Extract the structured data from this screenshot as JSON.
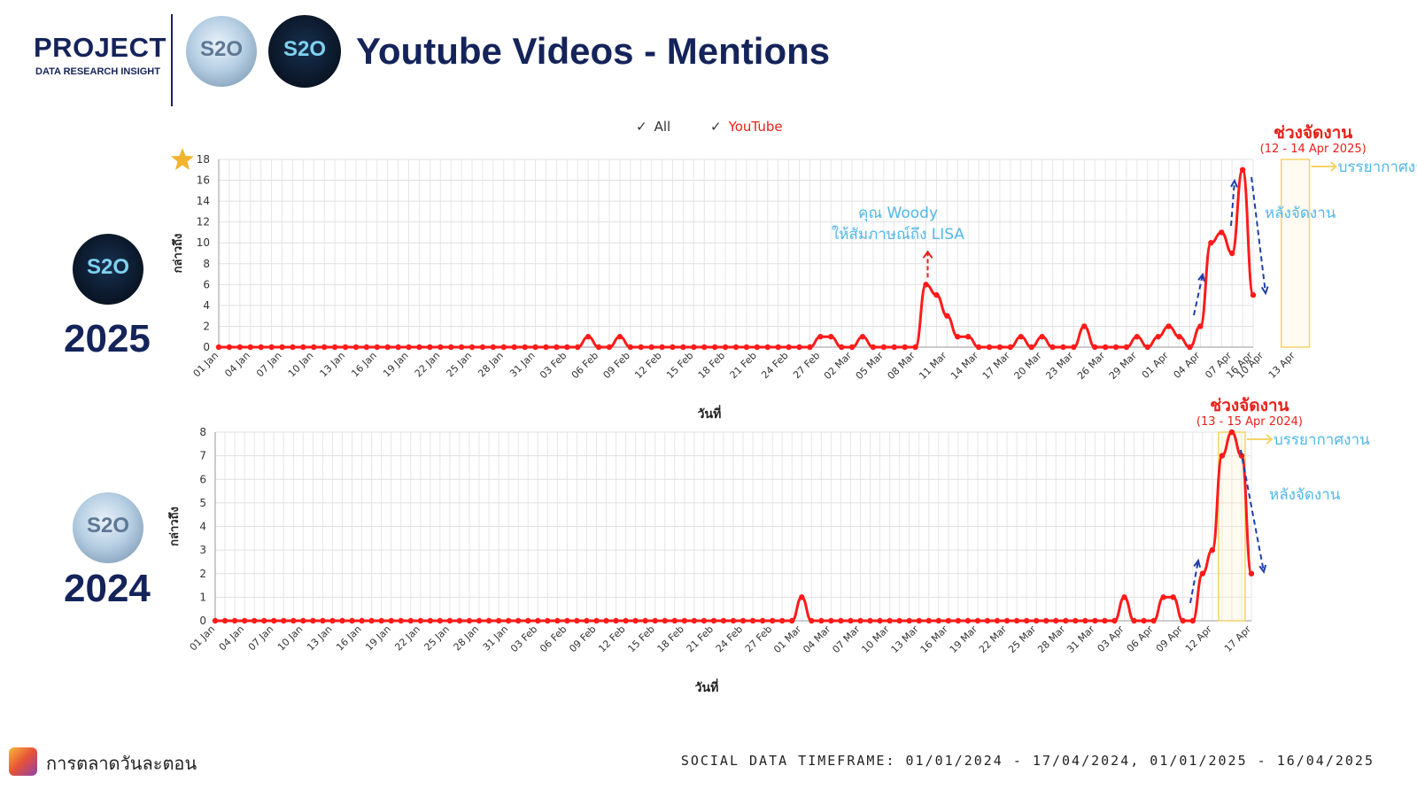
{
  "header": {
    "project_title": "PROJECT",
    "project_subtitle": "DATA RESEARCH INSIGHT",
    "main_title": "Youtube Videos - Mentions",
    "logo_text": "S2O"
  },
  "legend": [
    {
      "label": "All",
      "color": "#333333"
    },
    {
      "label": "YouTube",
      "color": "#e8211a"
    }
  ],
  "footer": {
    "brand": "การตลาดวันละตอน",
    "timeframe": "SOCIAL DATA TIMEFRAME: 01/01/2024 - 17/04/2024, 01/01/2025 - 16/04/2025"
  },
  "colors": {
    "navy": "#14245a",
    "line": "#ff1a1a",
    "event_title": "#e8211a",
    "annotation": "#4fb8ea",
    "event_box": "#f5d36a",
    "arrow": "#1f3fa8"
  },
  "chart_data": [
    {
      "type": "line",
      "year_label": "2025",
      "xlabel": "วันที่",
      "ylabel": "กล่าวถึง",
      "ylim": [
        0,
        18
      ],
      "yticks": [
        0,
        2,
        4,
        6,
        8,
        10,
        12,
        14,
        16,
        18
      ],
      "start_date": "2025-01-01",
      "x_tick_labels": [
        "01 Jan",
        "04 Jan",
        "07 Jan",
        "10 Jan",
        "13 Jan",
        "16 Jan",
        "19 Jan",
        "22 Jan",
        "25 Jan",
        "28 Jan",
        "31 Jan",
        "03 Feb",
        "06 Feb",
        "09 Feb",
        "12 Feb",
        "15 Feb",
        "18 Feb",
        "21 Feb",
        "24 Feb",
        "27 Feb",
        "02 Mar",
        "05 Mar",
        "08 Mar",
        "11 Mar",
        "14 Mar",
        "17 Mar",
        "20 Mar",
        "23 Mar",
        "26 Mar",
        "29 Mar",
        "01 Apr",
        "04 Apr",
        "07 Apr",
        "10 Apr",
        "13 Apr",
        "16 Apr"
      ],
      "grid": true,
      "series": [
        {
          "name": "YouTube",
          "values": [
            0,
            0,
            0,
            0,
            0,
            0,
            0,
            0,
            0,
            0,
            0,
            0,
            0,
            0,
            0,
            0,
            0,
            0,
            0,
            0,
            0,
            0,
            0,
            0,
            0,
            0,
            0,
            0,
            0,
            0,
            0,
            0,
            0,
            0,
            0,
            1,
            0,
            0,
            1,
            0,
            0,
            0,
            0,
            0,
            0,
            0,
            0,
            0,
            0,
            0,
            0,
            0,
            0,
            0,
            0,
            0,
            0,
            1,
            1,
            0,
            0,
            1,
            0,
            0,
            0,
            0,
            0,
            6,
            5,
            3,
            1,
            1,
            0,
            0,
            0,
            0,
            1,
            0,
            1,
            0,
            0,
            0,
            2,
            0,
            0,
            0,
            0,
            1,
            0,
            1,
            2,
            1,
            0,
            2,
            10,
            11,
            9,
            17,
            5
          ]
        }
      ],
      "event_window": {
        "from": "2025-04-12",
        "to": "2025-04-14"
      },
      "annotations": {
        "event_title": "ช่วงจัดงาน",
        "event_dates": "(12 - 14 Apr 2025)",
        "atmosphere": "บรรยากาศงาน",
        "after_event": "หลังจัดงาน",
        "note_line1": "คุณ Woody",
        "note_line2": "ให้สัมภาษณ์ถึง LISA"
      }
    },
    {
      "type": "line",
      "year_label": "2024",
      "xlabel": "วันที่",
      "ylabel": "กล่าวถึง",
      "ylim": [
        0,
        8
      ],
      "yticks": [
        0,
        1,
        2,
        3,
        4,
        5,
        6,
        7,
        8
      ],
      "start_date": "2024-01-01",
      "x_tick_labels": [
        "01 Jan",
        "04 Jan",
        "07 Jan",
        "10 Jan",
        "13 Jan",
        "16 Jan",
        "19 Jan",
        "22 Jan",
        "25 Jan",
        "28 Jan",
        "31 Jan",
        "03 Feb",
        "06 Feb",
        "09 Feb",
        "12 Feb",
        "15 Feb",
        "18 Feb",
        "21 Feb",
        "24 Feb",
        "27 Feb",
        "01 Mar",
        "04 Mar",
        "07 Mar",
        "10 Mar",
        "13 Mar",
        "16 Mar",
        "19 Mar",
        "22 Mar",
        "25 Mar",
        "28 Mar",
        "31 Mar",
        "03 Apr",
        "06 Apr",
        "09 Apr",
        "12 Apr",
        "17 Apr"
      ],
      "grid": true,
      "series": [
        {
          "name": "YouTube",
          "values": [
            0,
            0,
            0,
            0,
            0,
            0,
            0,
            0,
            0,
            0,
            0,
            0,
            0,
            0,
            0,
            0,
            0,
            0,
            0,
            0,
            0,
            0,
            0,
            0,
            0,
            0,
            0,
            0,
            0,
            0,
            0,
            0,
            0,
            0,
            0,
            0,
            0,
            0,
            0,
            0,
            0,
            0,
            0,
            0,
            0,
            0,
            0,
            0,
            0,
            0,
            0,
            0,
            0,
            0,
            0,
            0,
            0,
            0,
            0,
            0,
            1,
            0,
            0,
            0,
            0,
            0,
            0,
            0,
            0,
            0,
            0,
            0,
            0,
            0,
            0,
            0,
            0,
            0,
            0,
            0,
            0,
            0,
            0,
            0,
            0,
            0,
            0,
            0,
            0,
            0,
            0,
            0,
            0,
            1,
            0,
            0,
            0,
            1,
            1,
            0,
            0,
            2,
            3,
            7,
            8,
            7,
            2
          ]
        }
      ],
      "event_window": {
        "from": "2024-04-13",
        "to": "2024-04-15"
      },
      "annotations": {
        "event_title": "ช่วงจัดงาน",
        "event_dates": "(13 - 15 Apr 2024)",
        "atmosphere": "บรรยากาศงาน",
        "after_event": "หลังจัดงาน"
      }
    }
  ]
}
